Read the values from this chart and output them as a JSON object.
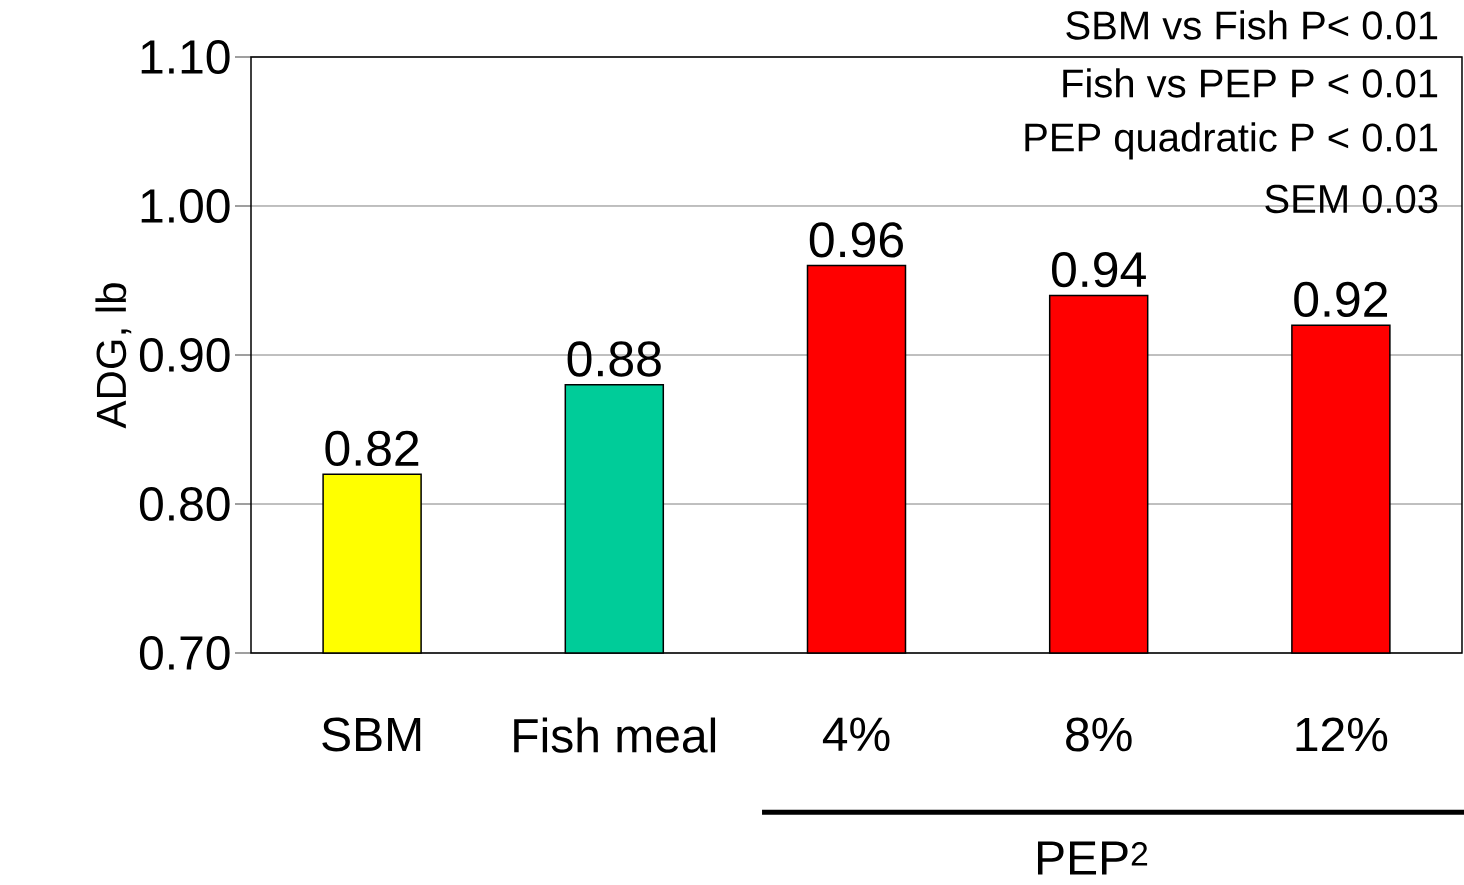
{
  "chart_data": {
    "type": "bar",
    "ylabel": "ADG, lb",
    "categories": [
      "SBM",
      "Fish meal",
      "4%",
      "8%",
      "12%"
    ],
    "values": [
      0.82,
      0.88,
      0.96,
      0.94,
      0.92
    ],
    "colors": [
      "#ffff00",
      "#00cc99",
      "#ff0000",
      "#ff0000",
      "#ff0000"
    ],
    "ylim": [
      0.7,
      1.1
    ],
    "yticks": [
      {
        "value": 0.7,
        "label": "0.70"
      },
      {
        "value": 0.8,
        "label": "0.80"
      },
      {
        "value": 0.9,
        "label": "0.90"
      },
      {
        "value": 1.0,
        "label": "1.00"
      },
      {
        "value": 1.1,
        "label": "1.10"
      }
    ],
    "grid": "y",
    "data_labels": true,
    "annotations": [
      "SBM vs Fish P< 0.01",
      "Fish vs PEP P < 0.01",
      "PEP quadratic P < 0.01",
      "SEM 0.03",
      "PEP$^{2}$"
    ]
  }
}
